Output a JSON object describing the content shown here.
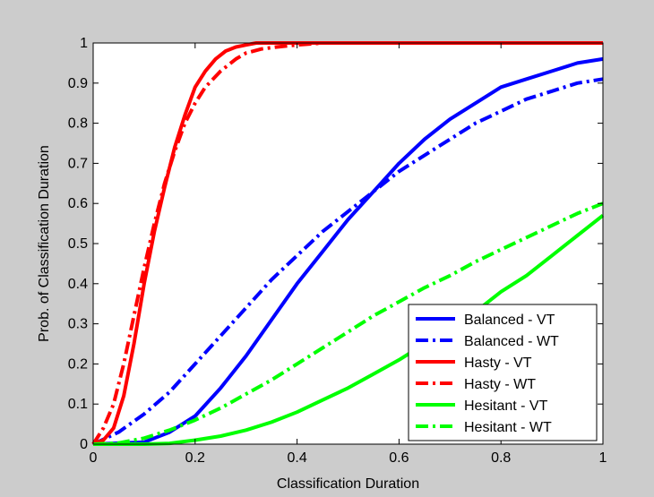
{
  "chart_data": {
    "type": "line",
    "title": "",
    "xlabel": "Classification Duration",
    "ylabel": "Prob. of Classification Duration",
    "xlim": [
      0,
      1
    ],
    "ylim": [
      0,
      1
    ],
    "x_ticks": [
      0,
      0.2,
      0.4,
      0.6,
      0.8,
      1
    ],
    "x_tick_labels": [
      "0",
      "0.2",
      "0.4",
      "0.6",
      "0.8",
      "1"
    ],
    "y_ticks": [
      0,
      0.1,
      0.2,
      0.3,
      0.4,
      0.5,
      0.6,
      0.7,
      0.8,
      0.9,
      1
    ],
    "y_tick_labels": [
      "0",
      "0.1",
      "0.2",
      "0.3",
      "0.4",
      "0.5",
      "0.6",
      "0.7",
      "0.8",
      "0.9",
      "1"
    ],
    "grid": false,
    "legend_position": "bottom-right",
    "series": [
      {
        "name": "Balanced - VT",
        "color": "#0000ff",
        "style": "solid",
        "x": [
          0,
          0.1,
          0.12,
          0.15,
          0.2,
          0.25,
          0.3,
          0.35,
          0.4,
          0.45,
          0.5,
          0.55,
          0.6,
          0.65,
          0.7,
          0.75,
          0.8,
          0.85,
          0.9,
          0.95,
          1.0
        ],
        "y": [
          0,
          0.005,
          0.015,
          0.03,
          0.07,
          0.14,
          0.22,
          0.31,
          0.4,
          0.48,
          0.56,
          0.63,
          0.7,
          0.76,
          0.81,
          0.85,
          0.89,
          0.91,
          0.93,
          0.95,
          0.96
        ]
      },
      {
        "name": "Balanced - WT",
        "color": "#0000ff",
        "style": "dashdot",
        "x": [
          0,
          0.05,
          0.1,
          0.15,
          0.2,
          0.25,
          0.3,
          0.35,
          0.4,
          0.45,
          0.5,
          0.55,
          0.6,
          0.65,
          0.7,
          0.75,
          0.8,
          0.85,
          0.9,
          0.95,
          1.0
        ],
        "y": [
          0,
          0.03,
          0.075,
          0.13,
          0.2,
          0.27,
          0.34,
          0.41,
          0.47,
          0.53,
          0.58,
          0.63,
          0.68,
          0.72,
          0.76,
          0.8,
          0.83,
          0.86,
          0.88,
          0.9,
          0.91
        ]
      },
      {
        "name": "Hasty - VT",
        "color": "#ff0000",
        "style": "solid",
        "x": [
          0,
          0.02,
          0.04,
          0.06,
          0.08,
          0.1,
          0.12,
          0.14,
          0.16,
          0.18,
          0.2,
          0.22,
          0.24,
          0.26,
          0.28,
          0.3,
          0.32,
          0.35,
          0.4,
          0.5,
          1.0
        ],
        "y": [
          0,
          0.01,
          0.04,
          0.12,
          0.25,
          0.4,
          0.53,
          0.64,
          0.74,
          0.82,
          0.89,
          0.93,
          0.96,
          0.98,
          0.99,
          0.995,
          1.0,
          1.0,
          1.0,
          1.0,
          1.0
        ]
      },
      {
        "name": "Hasty - WT",
        "color": "#ff0000",
        "style": "dashdot",
        "x": [
          0,
          0.02,
          0.04,
          0.06,
          0.08,
          0.1,
          0.12,
          0.14,
          0.16,
          0.18,
          0.2,
          0.22,
          0.25,
          0.28,
          0.3,
          0.33,
          0.36,
          0.4,
          0.45,
          0.5,
          1.0
        ],
        "y": [
          0,
          0.04,
          0.1,
          0.2,
          0.32,
          0.44,
          0.55,
          0.65,
          0.73,
          0.8,
          0.85,
          0.89,
          0.93,
          0.96,
          0.975,
          0.985,
          0.99,
          0.995,
          1.0,
          1.0,
          1.0
        ]
      },
      {
        "name": "Hesitant - VT",
        "color": "#00ff00",
        "style": "solid",
        "x": [
          0,
          0.1,
          0.15,
          0.2,
          0.25,
          0.3,
          0.35,
          0.4,
          0.45,
          0.5,
          0.55,
          0.6,
          0.65,
          0.7,
          0.75,
          0.8,
          0.85,
          0.9,
          0.95,
          1.0
        ],
        "y": [
          0,
          0.0,
          0.002,
          0.01,
          0.02,
          0.035,
          0.055,
          0.08,
          0.11,
          0.14,
          0.175,
          0.21,
          0.25,
          0.29,
          0.33,
          0.38,
          0.42,
          0.47,
          0.52,
          0.57
        ]
      },
      {
        "name": "Hesitant - WT",
        "color": "#00ff00",
        "style": "dashdot",
        "x": [
          0,
          0.05,
          0.1,
          0.15,
          0.2,
          0.25,
          0.3,
          0.35,
          0.4,
          0.45,
          0.5,
          0.55,
          0.6,
          0.65,
          0.7,
          0.75,
          0.8,
          0.85,
          0.9,
          0.95,
          1.0
        ],
        "y": [
          0,
          0.003,
          0.015,
          0.035,
          0.06,
          0.09,
          0.125,
          0.16,
          0.2,
          0.24,
          0.28,
          0.32,
          0.355,
          0.39,
          0.42,
          0.455,
          0.485,
          0.515,
          0.545,
          0.575,
          0.6
        ]
      }
    ]
  }
}
